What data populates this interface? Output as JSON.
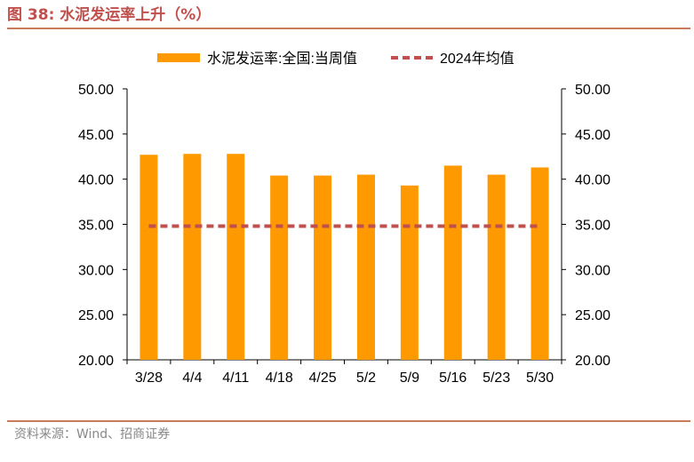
{
  "figure": {
    "number_label": "图 38:",
    "title": "水泥发运率上升（%）"
  },
  "source": "资料来源：Wind、招商证券",
  "colors": {
    "bar": "#ff9900",
    "avg_line": "#c0504d",
    "title": "#c0504d",
    "rule": "#c87b5a",
    "axis": "#000000"
  },
  "chart_data": {
    "type": "bar",
    "title": "",
    "xlabel": "",
    "ylabel": "",
    "categories": [
      "3/28",
      "4/4",
      "4/11",
      "4/18",
      "4/25",
      "5/2",
      "5/9",
      "5/16",
      "5/23",
      "5/30"
    ],
    "series": [
      {
        "name": "水泥发运率:全国:当周值",
        "type": "bar",
        "values": [
          42.7,
          42.8,
          42.8,
          40.4,
          40.4,
          40.5,
          39.3,
          41.5,
          40.5,
          41.3
        ]
      },
      {
        "name": "2024年均值",
        "type": "line",
        "style": "dashed",
        "values": [
          34.8,
          34.8,
          34.8,
          34.8,
          34.8,
          34.8,
          34.8,
          34.8,
          34.8,
          34.8
        ]
      }
    ],
    "ylim": [
      20,
      50
    ],
    "y_ticks": [
      "20.00",
      "25.00",
      "30.00",
      "35.00",
      "40.00",
      "45.00",
      "50.00"
    ],
    "y_right_ticks": [
      "20.00",
      "25.00",
      "30.00",
      "35.00",
      "40.00",
      "45.00",
      "50.00"
    ],
    "grid": false,
    "legend_position": "top"
  }
}
